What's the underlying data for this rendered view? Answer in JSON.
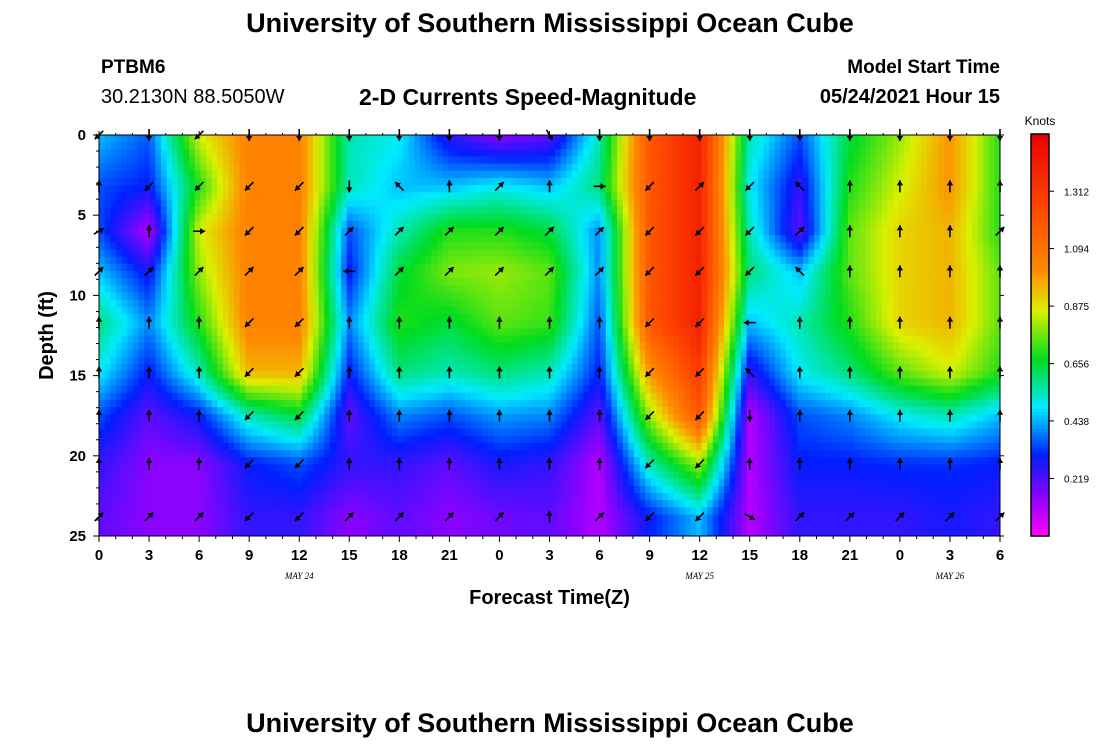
{
  "header": {
    "title": "University of Southern Mississippi Ocean Cube",
    "station_id": "PTBM6",
    "station_coords": "30.2130N  88.5050W",
    "chart_title": "2-D Currents Speed-Magnitude",
    "model_label": "Model Start Time",
    "model_time": "05/24/2021 Hour 15"
  },
  "footer": {
    "title": "University of Southern Mississippi Ocean Cube"
  },
  "chart_data": {
    "type": "heatmap",
    "title": "2-D Currents Speed-Magnitude",
    "xlabel": "Forecast Time(Z)",
    "ylabel": "Depth (ft)",
    "x_ticks": [
      "0",
      "3",
      "6",
      "9",
      "12",
      "15",
      "18",
      "21",
      "0",
      "3",
      "6",
      "9",
      "12",
      "15",
      "18",
      "21",
      "0",
      "3",
      "6"
    ],
    "y_ticks": [
      "0",
      "5",
      "10",
      "15",
      "20",
      "25"
    ],
    "ylim": [
      0,
      25
    ],
    "y_inverted": true,
    "date_labels": [
      {
        "text": "MAY 24",
        "hours": 12
      },
      {
        "text": "MAY 25",
        "hours": 36
      },
      {
        "text": "MAY 26",
        "hours": 51
      }
    ],
    "colorbar": {
      "unit": "Knots",
      "ticks": [
        "0.219",
        "0.438",
        "0.656",
        "0.875",
        "1.094",
        "1.312"
      ],
      "range": [
        0,
        1.53
      ]
    },
    "grid": {
      "hours": [
        0,
        3,
        6,
        9,
        12,
        15,
        18,
        21,
        24,
        27,
        30,
        33,
        36,
        39,
        42,
        45,
        48,
        51,
        54
      ],
      "depths": [
        0,
        3.2,
        6.0,
        8.5,
        11.7,
        14.8,
        17.5,
        20.5,
        23.8
      ],
      "speed": [
        [
          0.45,
          0.36,
          0.85,
          1.05,
          1.05,
          0.55,
          0.5,
          0.25,
          0.15,
          0.2,
          0.55,
          1.2,
          1.4,
          0.55,
          0.35,
          0.65,
          0.8,
          1.0,
          0.7
        ],
        [
          0.35,
          0.3,
          0.7,
          1.05,
          1.05,
          0.55,
          0.45,
          0.45,
          0.5,
          0.45,
          0.6,
          1.2,
          1.4,
          0.5,
          0.25,
          0.7,
          0.85,
          1.0,
          0.7
        ],
        [
          0.35,
          0.1,
          0.85,
          1.05,
          1.05,
          0.35,
          0.55,
          0.7,
          0.7,
          0.65,
          0.4,
          1.2,
          1.4,
          0.55,
          0.2,
          0.75,
          0.9,
          0.95,
          0.7
        ],
        [
          0.45,
          0.28,
          0.8,
          1.05,
          1.05,
          0.3,
          0.65,
          0.78,
          0.8,
          0.75,
          0.4,
          1.2,
          1.4,
          0.6,
          0.45,
          0.75,
          0.9,
          0.95,
          0.75
        ],
        [
          0.6,
          0.4,
          0.7,
          1.05,
          1.05,
          0.4,
          0.7,
          0.65,
          0.75,
          0.72,
          0.35,
          1.2,
          1.4,
          0.45,
          0.55,
          0.7,
          0.9,
          0.95,
          0.75
        ],
        [
          0.5,
          0.3,
          0.55,
          0.95,
          0.95,
          0.3,
          0.6,
          0.55,
          0.6,
          0.55,
          0.3,
          1.0,
          1.3,
          0.25,
          0.5,
          0.6,
          0.75,
          0.85,
          0.7
        ],
        [
          0.35,
          0.2,
          0.3,
          0.55,
          0.65,
          0.2,
          0.4,
          0.35,
          0.42,
          0.4,
          0.2,
          0.8,
          1.2,
          0.1,
          0.35,
          0.4,
          0.5,
          0.55,
          0.45
        ],
        [
          0.25,
          0.15,
          0.15,
          0.3,
          0.35,
          0.25,
          0.25,
          0.2,
          0.28,
          0.25,
          0.1,
          0.55,
          0.8,
          0.1,
          0.3,
          0.3,
          0.32,
          0.32,
          0.3
        ],
        [
          0.2,
          0.15,
          0.15,
          0.25,
          0.25,
          0.15,
          0.2,
          0.15,
          0.18,
          0.2,
          0.1,
          0.3,
          0.45,
          0.1,
          0.25,
          0.25,
          0.25,
          0.28,
          0.25
        ]
      ],
      "direction_deg": [
        [
          225,
          180,
          225,
          180,
          180,
          180,
          180,
          180,
          180,
          150,
          180,
          180,
          180,
          180,
          180,
          180,
          180,
          180,
          180
        ],
        [
          0,
          225,
          225,
          225,
          225,
          180,
          315,
          0,
          45,
          0,
          90,
          225,
          45,
          225,
          315,
          0,
          0,
          0,
          0
        ],
        [
          60,
          0,
          90,
          225,
          225,
          45,
          45,
          45,
          45,
          45,
          45,
          225,
          225,
          225,
          45,
          0,
          0,
          0,
          45
        ],
        [
          45,
          45,
          45,
          45,
          45,
          270,
          45,
          45,
          45,
          45,
          45,
          225,
          225,
          225,
          315,
          0,
          0,
          0,
          0
        ],
        [
          0,
          0,
          0,
          225,
          225,
          0,
          0,
          0,
          0,
          0,
          0,
          225,
          225,
          270,
          0,
          0,
          0,
          0,
          0
        ],
        [
          0,
          0,
          0,
          225,
          225,
          0,
          0,
          0,
          0,
          0,
          0,
          225,
          225,
          315,
          0,
          0,
          0,
          0,
          0
        ],
        [
          0,
          0,
          0,
          225,
          225,
          0,
          0,
          0,
          0,
          0,
          0,
          225,
          225,
          180,
          0,
          0,
          0,
          0,
          0
        ],
        [
          0,
          0,
          0,
          225,
          225,
          0,
          0,
          0,
          0,
          0,
          0,
          225,
          225,
          0,
          0,
          0,
          0,
          0,
          0
        ],
        [
          45,
          45,
          45,
          225,
          225,
          45,
          45,
          45,
          45,
          0,
          45,
          225,
          225,
          120,
          45,
          45,
          45,
          45,
          45
        ]
      ]
    }
  }
}
